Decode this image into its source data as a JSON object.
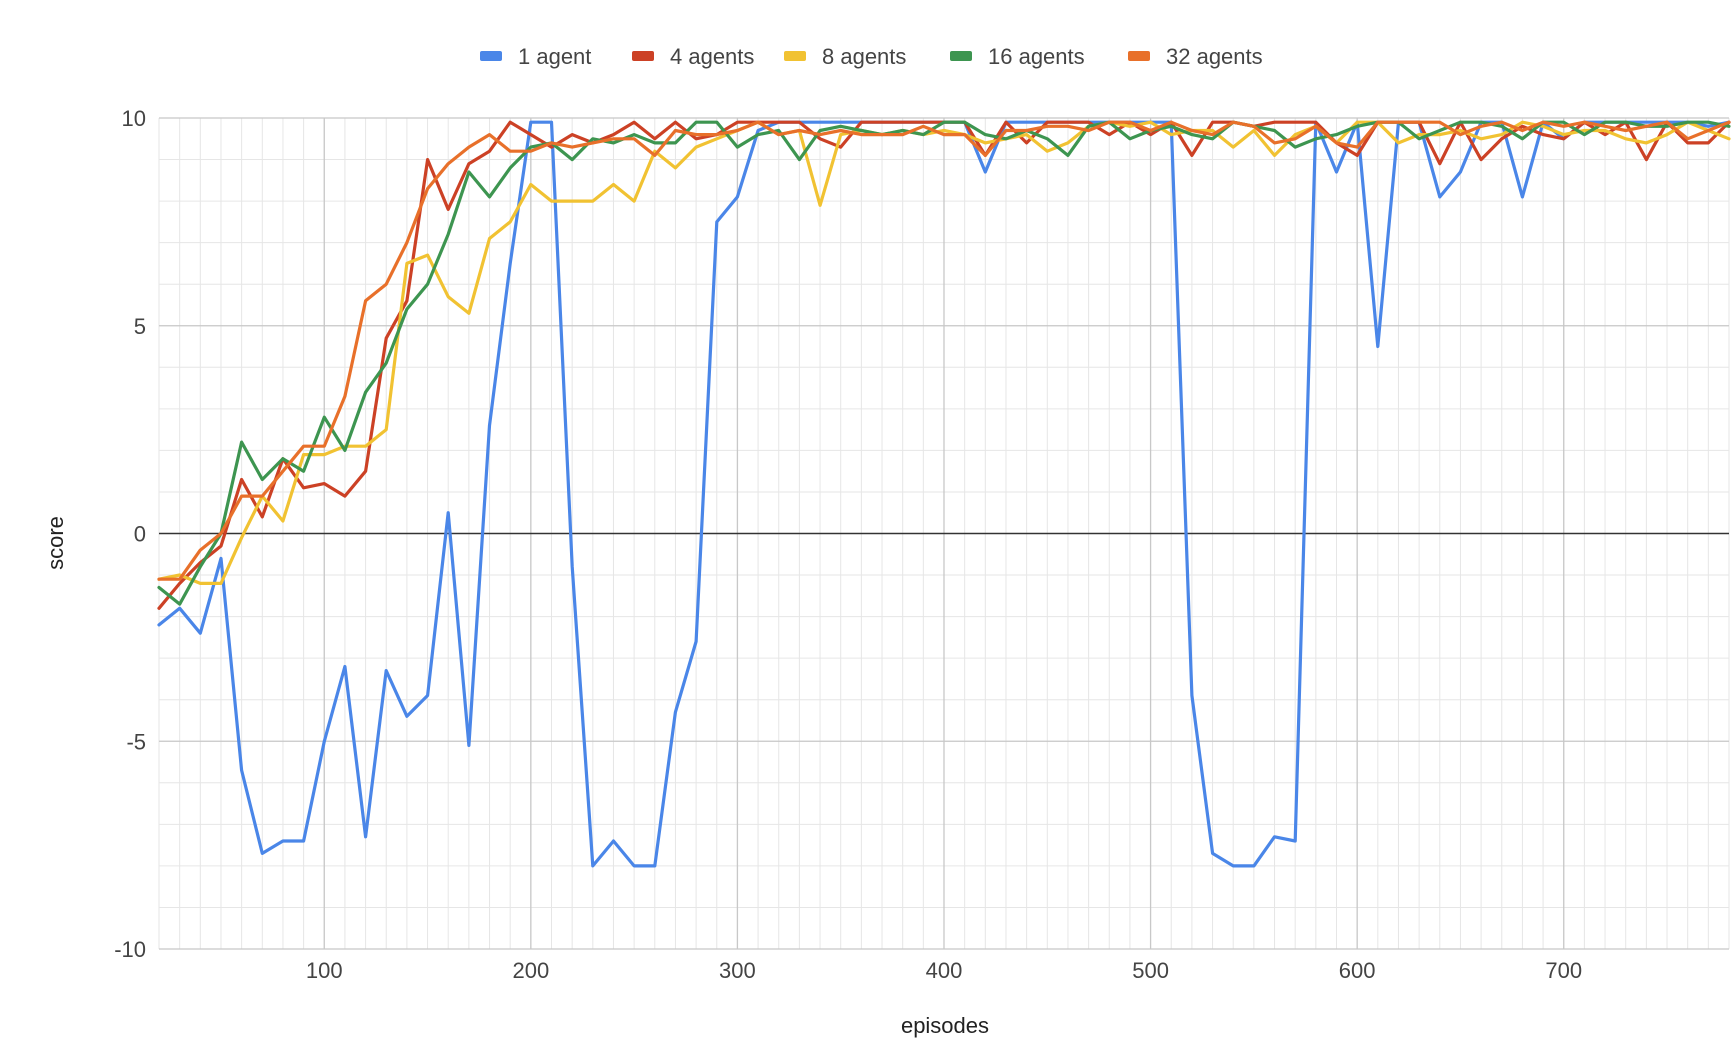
{
  "chart_data": {
    "type": "line",
    "title": "",
    "xlabel": "episodes",
    "ylabel": "score",
    "xlim": [
      20,
      780
    ],
    "ylim": [
      -10,
      10
    ],
    "x_ticks": [
      100,
      200,
      300,
      400,
      500,
      600,
      700
    ],
    "y_ticks": [
      -10,
      -5,
      0,
      5,
      10
    ],
    "x_tick_labels": [
      "100",
      "200",
      "300",
      "400",
      "500",
      "600",
      "700"
    ],
    "y_tick_labels": [
      "-10",
      "-5",
      "0",
      "5",
      "10"
    ],
    "grid": true,
    "legend_position": "top",
    "x": [
      20,
      30,
      40,
      50,
      60,
      70,
      80,
      90,
      100,
      110,
      120,
      130,
      140,
      150,
      160,
      170,
      180,
      190,
      200,
      210,
      220,
      230,
      240,
      250,
      260,
      270,
      280,
      290,
      300,
      310,
      320,
      330,
      340,
      350,
      360,
      370,
      380,
      390,
      400,
      410,
      420,
      430,
      440,
      450,
      460,
      470,
      480,
      490,
      500,
      510,
      520,
      530,
      540,
      550,
      560,
      570,
      580,
      590,
      600,
      610,
      620,
      630,
      640,
      650,
      660,
      670,
      680,
      690,
      700,
      710,
      720,
      730,
      740,
      750,
      760,
      770,
      780
    ],
    "series": [
      {
        "name": "1 agent",
        "color": "#4a86e8",
        "values": [
          -2.2,
          -1.8,
          -2.4,
          -0.6,
          -5.7,
          -7.7,
          -7.4,
          -7.4,
          -5.0,
          -3.2,
          -7.3,
          -3.3,
          -4.4,
          -3.9,
          0.5,
          -5.1,
          2.6,
          6.5,
          9.9,
          9.9,
          -0.8,
          -8.0,
          -7.4,
          -8.0,
          -8.0,
          -4.3,
          -2.6,
          7.5,
          8.1,
          9.7,
          9.9,
          9.9,
          9.9,
          9.9,
          9.9,
          9.9,
          9.9,
          9.9,
          9.9,
          9.9,
          8.7,
          9.9,
          9.9,
          9.9,
          9.9,
          9.9,
          9.9,
          9.9,
          9.9,
          9.9,
          -3.9,
          -7.7,
          -8.0,
          -8.0,
          -7.3,
          -7.4,
          9.9,
          8.7,
          9.9,
          4.5,
          9.9,
          9.9,
          8.1,
          8.7,
          9.9,
          9.9,
          8.1,
          9.9,
          9.5,
          9.9,
          9.9,
          9.9,
          9.9,
          9.9,
          9.9,
          9.8,
          9.9
        ]
      },
      {
        "name": "4 agents",
        "color": "#cc4125",
        "values": [
          -1.8,
          -1.2,
          -0.7,
          -0.3,
          1.3,
          0.4,
          1.8,
          1.1,
          1.2,
          0.9,
          1.5,
          4.7,
          5.6,
          9.0,
          7.8,
          8.9,
          9.2,
          9.9,
          9.6,
          9.3,
          9.6,
          9.4,
          9.6,
          9.9,
          9.5,
          9.9,
          9.5,
          9.6,
          9.9,
          9.9,
          9.9,
          9.9,
          9.5,
          9.3,
          9.9,
          9.9,
          9.9,
          9.9,
          9.9,
          9.9,
          9.1,
          9.9,
          9.4,
          9.9,
          9.9,
          9.9,
          9.6,
          9.9,
          9.6,
          9.9,
          9.1,
          9.9,
          9.9,
          9.8,
          9.9,
          9.9,
          9.9,
          9.4,
          9.1,
          9.9,
          9.9,
          9.9,
          8.9,
          9.9,
          9.0,
          9.5,
          9.8,
          9.6,
          9.5,
          9.9,
          9.6,
          9.9,
          9.0,
          9.9,
          9.4,
          9.4,
          9.9
        ]
      },
      {
        "name": "8 agents",
        "color": "#f1c232",
        "values": [
          -1.1,
          -1.0,
          -1.2,
          -1.2,
          -0.1,
          0.9,
          0.3,
          1.9,
          1.9,
          2.1,
          2.1,
          2.5,
          6.5,
          6.7,
          5.7,
          5.3,
          7.1,
          7.5,
          8.4,
          8.0,
          8.0,
          8.0,
          8.4,
          8.0,
          9.2,
          8.8,
          9.3,
          9.5,
          9.7,
          9.9,
          9.6,
          9.7,
          7.9,
          9.6,
          9.7,
          9.6,
          9.7,
          9.6,
          9.7,
          9.6,
          9.4,
          9.5,
          9.6,
          9.2,
          9.4,
          9.8,
          9.9,
          9.8,
          9.9,
          9.6,
          9.7,
          9.7,
          9.3,
          9.7,
          9.1,
          9.6,
          9.8,
          9.4,
          9.9,
          9.9,
          9.4,
          9.6,
          9.6,
          9.7,
          9.5,
          9.6,
          9.9,
          9.8,
          9.6,
          9.7,
          9.7,
          9.5,
          9.4,
          9.6,
          9.9,
          9.7,
          9.5
        ]
      },
      {
        "name": "16 agents",
        "color": "#3d9550",
        "values": [
          -1.3,
          -1.7,
          -0.8,
          0.0,
          2.2,
          1.3,
          1.8,
          1.5,
          2.8,
          2.0,
          3.4,
          4.1,
          5.4,
          6.0,
          7.2,
          8.7,
          8.1,
          8.8,
          9.3,
          9.4,
          9.0,
          9.5,
          9.4,
          9.6,
          9.4,
          9.4,
          9.9,
          9.9,
          9.3,
          9.6,
          9.7,
          9.0,
          9.7,
          9.8,
          9.7,
          9.6,
          9.7,
          9.6,
          9.9,
          9.9,
          9.6,
          9.5,
          9.7,
          9.5,
          9.1,
          9.8,
          9.9,
          9.5,
          9.7,
          9.8,
          9.6,
          9.5,
          9.9,
          9.8,
          9.7,
          9.3,
          9.5,
          9.6,
          9.8,
          9.9,
          9.9,
          9.5,
          9.7,
          9.9,
          9.9,
          9.8,
          9.5,
          9.9,
          9.9,
          9.6,
          9.9,
          9.9,
          9.8,
          9.8,
          9.9,
          9.9,
          9.8
        ]
      },
      {
        "name": "32 agents",
        "color": "#e8702a",
        "values": [
          -1.1,
          -1.1,
          -0.4,
          0.0,
          0.9,
          0.9,
          1.5,
          2.1,
          2.1,
          3.3,
          5.6,
          6.0,
          7.0,
          8.3,
          8.9,
          9.3,
          9.6,
          9.2,
          9.2,
          9.4,
          9.3,
          9.4,
          9.5,
          9.5,
          9.1,
          9.7,
          9.6,
          9.6,
          9.7,
          9.9,
          9.6,
          9.7,
          9.6,
          9.7,
          9.6,
          9.6,
          9.6,
          9.8,
          9.6,
          9.6,
          9.1,
          9.7,
          9.7,
          9.8,
          9.8,
          9.7,
          9.9,
          9.9,
          9.7,
          9.9,
          9.7,
          9.6,
          9.9,
          9.8,
          9.4,
          9.5,
          9.8,
          9.4,
          9.3,
          9.9,
          9.9,
          9.9,
          9.9,
          9.6,
          9.8,
          9.9,
          9.7,
          9.9,
          9.8,
          9.9,
          9.8,
          9.7,
          9.8,
          9.9,
          9.5,
          9.7,
          9.9
        ]
      }
    ]
  }
}
